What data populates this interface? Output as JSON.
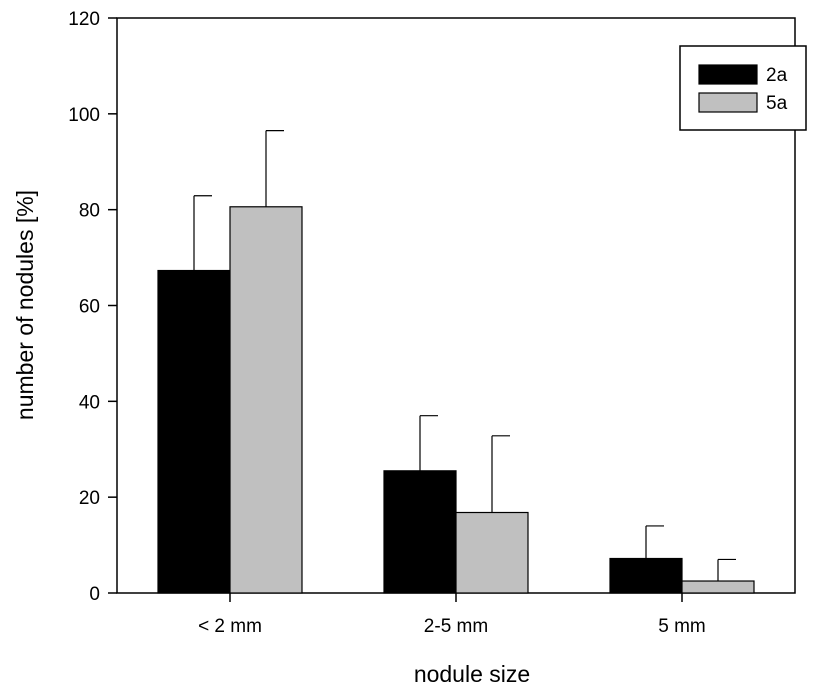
{
  "chart_data": {
    "type": "bar",
    "title": "",
    "xlabel": "nodule size",
    "ylabel": "number of nodules [%]",
    "ylim": [
      0,
      120
    ],
    "yticks": [
      0,
      20,
      40,
      60,
      80,
      100,
      120
    ],
    "categories": [
      "< 2 mm",
      "2-5 mm",
      "5 mm"
    ],
    "series": [
      {
        "name": "2a",
        "color": "#000000",
        "values": [
          67.3,
          25.5,
          7.2
        ],
        "errors": [
          15.6,
          11.5,
          6.8
        ]
      },
      {
        "name": "5a",
        "color": "#c0c0c0",
        "values": [
          80.6,
          16.8,
          2.5
        ],
        "errors": [
          15.9,
          16.0,
          4.5
        ]
      }
    ],
    "legend": "top-right",
    "grid": false
  }
}
